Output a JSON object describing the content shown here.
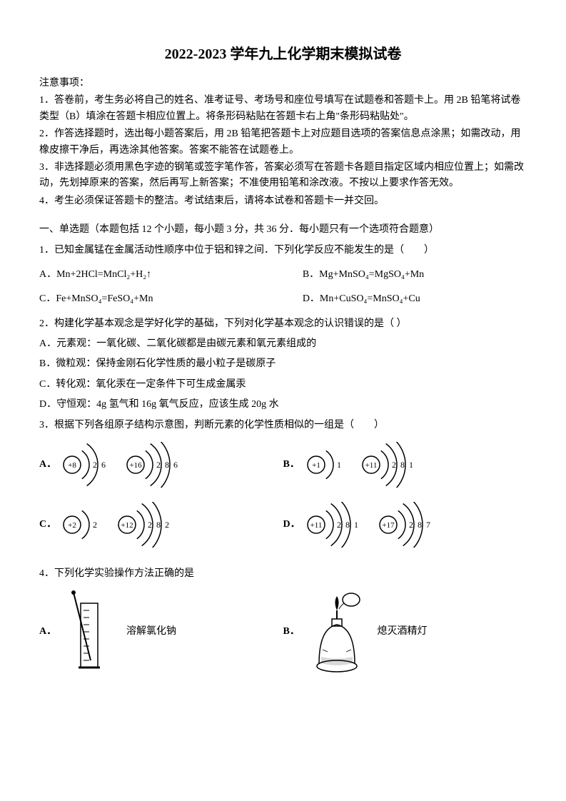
{
  "title": "2022-2023 学年九上化学期末模拟试卷",
  "notice": {
    "head": "注意事项：",
    "items": [
      "1．答卷前，考生务必将自己的姓名、准考证号、考场号和座位号填写在试题卷和答题卡上。用 2B 铅笔将试卷类型（B）填涂在答题卡相应位置上。将条形码粘贴在答题卡右上角\"条形码粘贴处\"。",
      "2．作答选择题时，选出每小题答案后，用 2B 铅笔把答题卡上对应题目选项的答案信息点涂黑；如需改动，用橡皮擦干净后，再选涂其他答案。答案不能答在试题卷上。",
      "3．非选择题必须用黑色字迹的钢笔或签字笔作答，答案必须写在答题卡各题目指定区域内相应位置上；如需改动，先划掉原来的答案，然后再写上新答案；不准使用铅笔和涂改液。不按以上要求作答无效。",
      "4．考生必须保证答题卡的整洁。考试结束后，请将本试卷和答题卡一并交回。"
    ]
  },
  "section1": "一、单选题（本题包括 12 个小题，每小题 3 分，共 36 分．每小题只有一个选项符合题意）",
  "q1": {
    "stem": "1．已知金属锰在金属活动性顺序中位于铝和锌之间．下列化学反应不能发生的是（　　）",
    "A": "A．Mn+2HCl=MnCl₂+H₂↑",
    "B": "B．Mg+MnSO₄=MgSO₄+Mn",
    "C": "C．Fe+MnSO₄=FeSO₄+Mn",
    "D": "D．Mn+CuSO₄=MnSO₄+Cu"
  },
  "q2": {
    "stem": "2．构建化学基本观念是学好化学的基础，下列对化学基本观念的认识错误的是（ ）",
    "A": "A．元素观：一氧化碳、二氧化碳都是由碳元素和氧元素组成的",
    "B": "B．微粒观：保持金刚石化学性质的最小粒子是碳原子",
    "C": "C．转化观：氧化汞在一定条件下可生成金属汞",
    "D": "D．守恒观：4g 氢气和 16g 氧气反应，应该生成 20g 水"
  },
  "q3": {
    "stem": "3．根据下列各组原子结构示意图，判断元素的化学性质相似的一组是（　　）",
    "labels": {
      "A": "A．",
      "B": "B．",
      "C": "C．",
      "D": "D．"
    },
    "atoms": {
      "A1": {
        "nucleus": "+8",
        "shells": [
          "2",
          "6"
        ]
      },
      "A2": {
        "nucleus": "+16",
        "shells": [
          "2",
          "8",
          "6"
        ]
      },
      "B1": {
        "nucleus": "+1",
        "shells": [
          "1"
        ]
      },
      "B2": {
        "nucleus": "+11",
        "shells": [
          "2",
          "8",
          "1"
        ]
      },
      "C1": {
        "nucleus": "+2",
        "shells": [
          "2"
        ]
      },
      "C2": {
        "nucleus": "+12",
        "shells": [
          "2",
          "8",
          "2"
        ]
      },
      "D1": {
        "nucleus": "+11",
        "shells": [
          "2",
          "8",
          "1"
        ]
      },
      "D2": {
        "nucleus": "+17",
        "shells": [
          "2",
          "8",
          "7"
        ]
      }
    }
  },
  "q4": {
    "stem": "4．下列化学实验操作方法正确的是",
    "A_caption": "溶解氯化钠",
    "B_caption": "熄灭酒精灯",
    "labels": {
      "A": "A．",
      "B": "B．"
    }
  },
  "colors": {
    "fg": "#000000",
    "bg": "#ffffff",
    "stroke": "#000000"
  }
}
